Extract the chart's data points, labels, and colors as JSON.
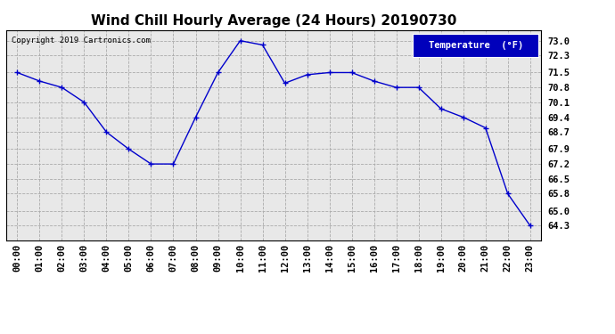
{
  "title": "Wind Chill Hourly Average (24 Hours) 20190730",
  "copyright_text": "Copyright 2019 Cartronics.com",
  "legend_label": "Temperature  (°F)",
  "x_labels": [
    "00:00",
    "01:00",
    "02:00",
    "03:00",
    "04:00",
    "05:00",
    "06:00",
    "07:00",
    "08:00",
    "09:00",
    "10:00",
    "11:00",
    "12:00",
    "13:00",
    "14:00",
    "15:00",
    "16:00",
    "17:00",
    "18:00",
    "19:00",
    "20:00",
    "21:00",
    "22:00",
    "23:00"
  ],
  "y_values": [
    71.5,
    71.1,
    70.8,
    70.1,
    68.7,
    67.9,
    67.2,
    67.2,
    69.4,
    71.5,
    73.0,
    72.8,
    71.0,
    71.4,
    71.5,
    71.5,
    71.1,
    70.8,
    70.8,
    69.8,
    69.4,
    68.9,
    65.8,
    64.3
  ],
  "hours": [
    0,
    1,
    2,
    3,
    4,
    5,
    6,
    7,
    8,
    9,
    10,
    11,
    12,
    13,
    14,
    15,
    16,
    17,
    18,
    19,
    20,
    21,
    22,
    23
  ],
  "y_ticks": [
    64.3,
    65.0,
    65.8,
    66.5,
    67.2,
    67.9,
    68.7,
    69.4,
    70.1,
    70.8,
    71.5,
    72.3,
    73.0
  ],
  "ylim_min": 63.6,
  "ylim_max": 73.5,
  "line_color": "#0000cc",
  "marker": "+",
  "bg_color": "#ffffff",
  "plot_bg_color": "#e8e8e8",
  "grid_color": "#aaaaaa",
  "title_fontsize": 11,
  "tick_fontsize": 7.5,
  "legend_bg": "#0000bb",
  "legend_text_color": "#ffffff"
}
